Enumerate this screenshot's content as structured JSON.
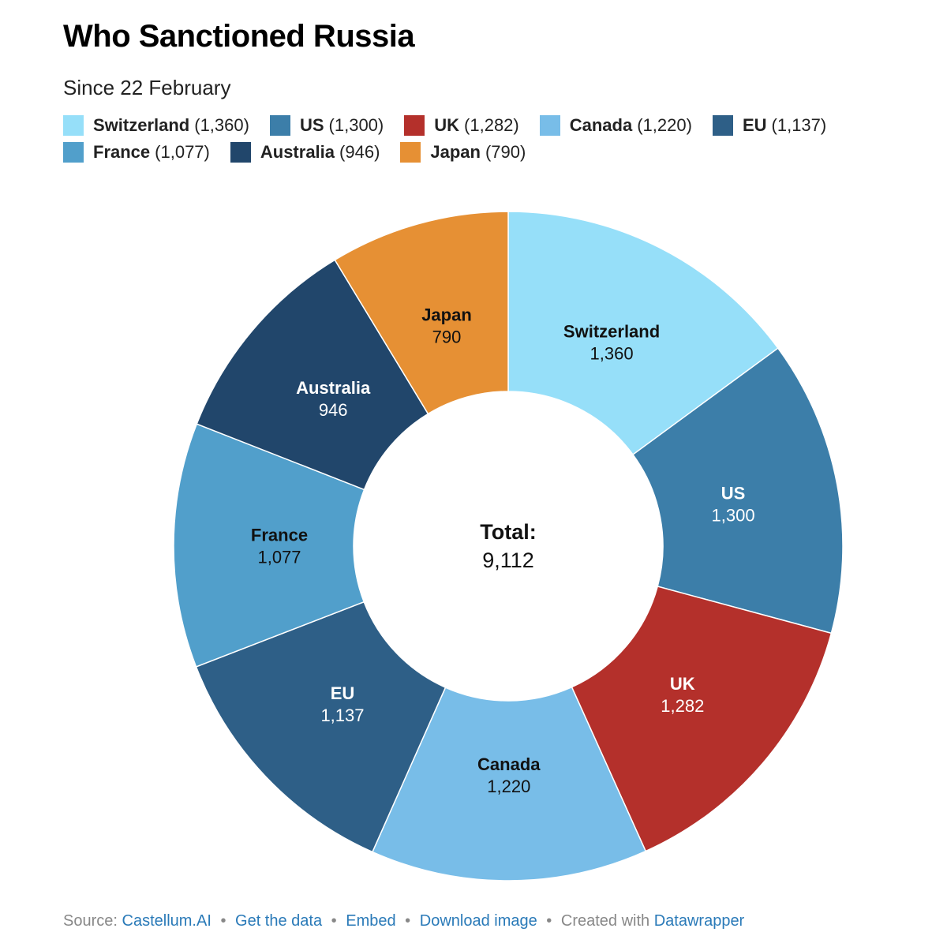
{
  "header": {
    "title": "Who Sanctioned Russia",
    "subtitle": "Since 22 February"
  },
  "chart_data": {
    "type": "pie",
    "variant": "donut",
    "title": "Who Sanctioned Russia",
    "subtitle": "Since 22 February",
    "categories": [
      "Switzerland",
      "US",
      "UK",
      "Canada",
      "EU",
      "France",
      "Australia",
      "Japan"
    ],
    "values": [
      1360,
      1300,
      1282,
      1220,
      1137,
      1077,
      946,
      790
    ],
    "value_labels": [
      "1,360",
      "1,300",
      "1,282",
      "1,220",
      "1,137",
      "1,077",
      "946",
      "790"
    ],
    "legend_labels": [
      "(1,360)",
      "(1,300)",
      "(1,282)",
      "(1,220)",
      "(1,137)",
      "(1,077)",
      "(946)",
      "(790)"
    ],
    "colors": [
      "#96dff9",
      "#3c7ea9",
      "#b4302b",
      "#78bde8",
      "#2e5f87",
      "#519fcb",
      "#21466b",
      "#e69034"
    ],
    "label_colors": [
      "#111111",
      "#ffffff",
      "#ffffff",
      "#111111",
      "#ffffff",
      "#111111",
      "#ffffff",
      "#111111"
    ],
    "legend_position": "top",
    "center_label": "Total:",
    "center_value": "9,112"
  },
  "footer": {
    "source_prefix": "Source:",
    "source_link": "Castellum.AI",
    "get_data": "Get the data",
    "embed": "Embed",
    "download": "Download image",
    "created_prefix": "Created with",
    "created_link": "Datawrapper",
    "separator": "•"
  }
}
